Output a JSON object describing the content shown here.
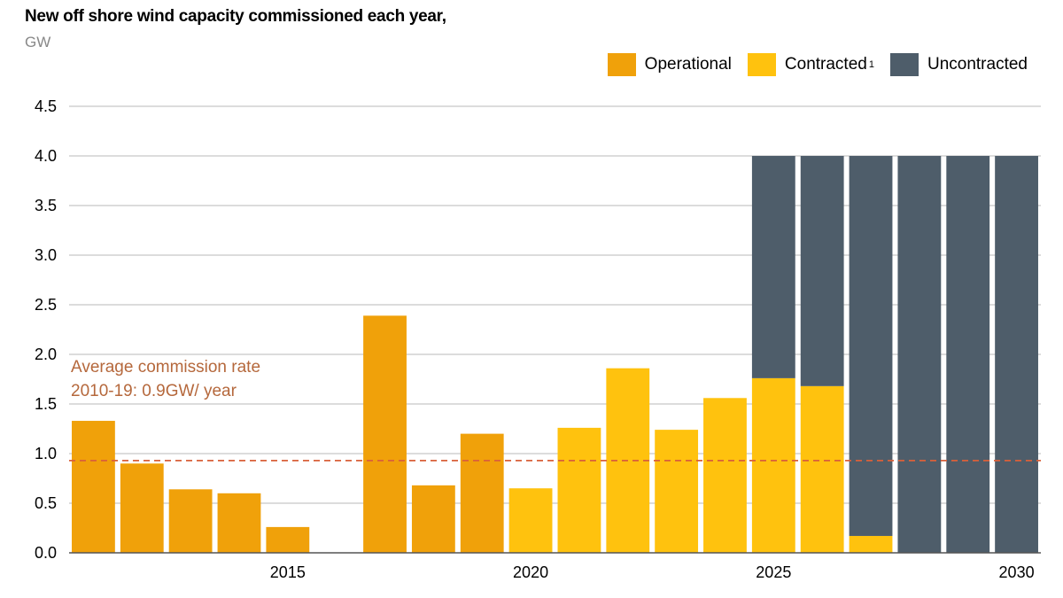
{
  "header": {
    "title": "New off shore wind capacity commissioned each year,",
    "unit": "GW"
  },
  "legend": [
    {
      "label": "Operational",
      "sup": "",
      "color": "#f0a10a"
    },
    {
      "label": "Contracted",
      "sup": "1",
      "color": "#ffc20e"
    },
    {
      "label": "Uncontracted",
      "sup": "",
      "color": "#4e5d6a"
    }
  ],
  "annotation": {
    "line1": "Average commission rate",
    "line2": "2010-19: 0.9GW/ year",
    "value": 0.93,
    "color": "#d9603a"
  },
  "chart_data": {
    "type": "bar",
    "stacked": true,
    "title": "New off shore wind capacity commissioned each year,",
    "ylabel": "GW",
    "ylim": [
      0,
      4.5
    ],
    "yticks": [
      "0.0",
      "0.5",
      "1.0",
      "1.5",
      "2.0",
      "2.5",
      "3.0",
      "3.5",
      "4.0",
      "4.5"
    ],
    "xtick_labels": [
      "2015",
      "2020",
      "2025",
      "2030"
    ],
    "grid": true,
    "legend_position": "top-right",
    "categories": [
      "2011",
      "2012",
      "2013",
      "2014",
      "2015",
      "2016",
      "2017",
      "2018",
      "2019",
      "2020",
      "2021",
      "2022",
      "2023",
      "2024",
      "2025",
      "2026",
      "2027",
      "2028",
      "2029",
      "2030"
    ],
    "series": [
      {
        "name": "Operational",
        "color": "#f0a10a",
        "values": [
          1.33,
          0.9,
          0.64,
          0.6,
          0.26,
          0,
          2.39,
          0.68,
          1.2,
          0,
          0,
          0,
          0,
          0,
          0,
          0,
          0,
          0,
          0,
          0
        ]
      },
      {
        "name": "Contracted",
        "color": "#ffc20e",
        "values": [
          0,
          0,
          0,
          0,
          0,
          0,
          0,
          0,
          0,
          0.65,
          1.26,
          1.86,
          1.24,
          1.56,
          1.76,
          1.68,
          0.17,
          0,
          0,
          0
        ]
      },
      {
        "name": "Uncontracted",
        "color": "#4e5d6a",
        "values": [
          0,
          0,
          0,
          0,
          0,
          0,
          0,
          0,
          0,
          0,
          0,
          0,
          0,
          0,
          2.24,
          2.32,
          3.83,
          4.0,
          4.0,
          4.0
        ]
      }
    ]
  }
}
